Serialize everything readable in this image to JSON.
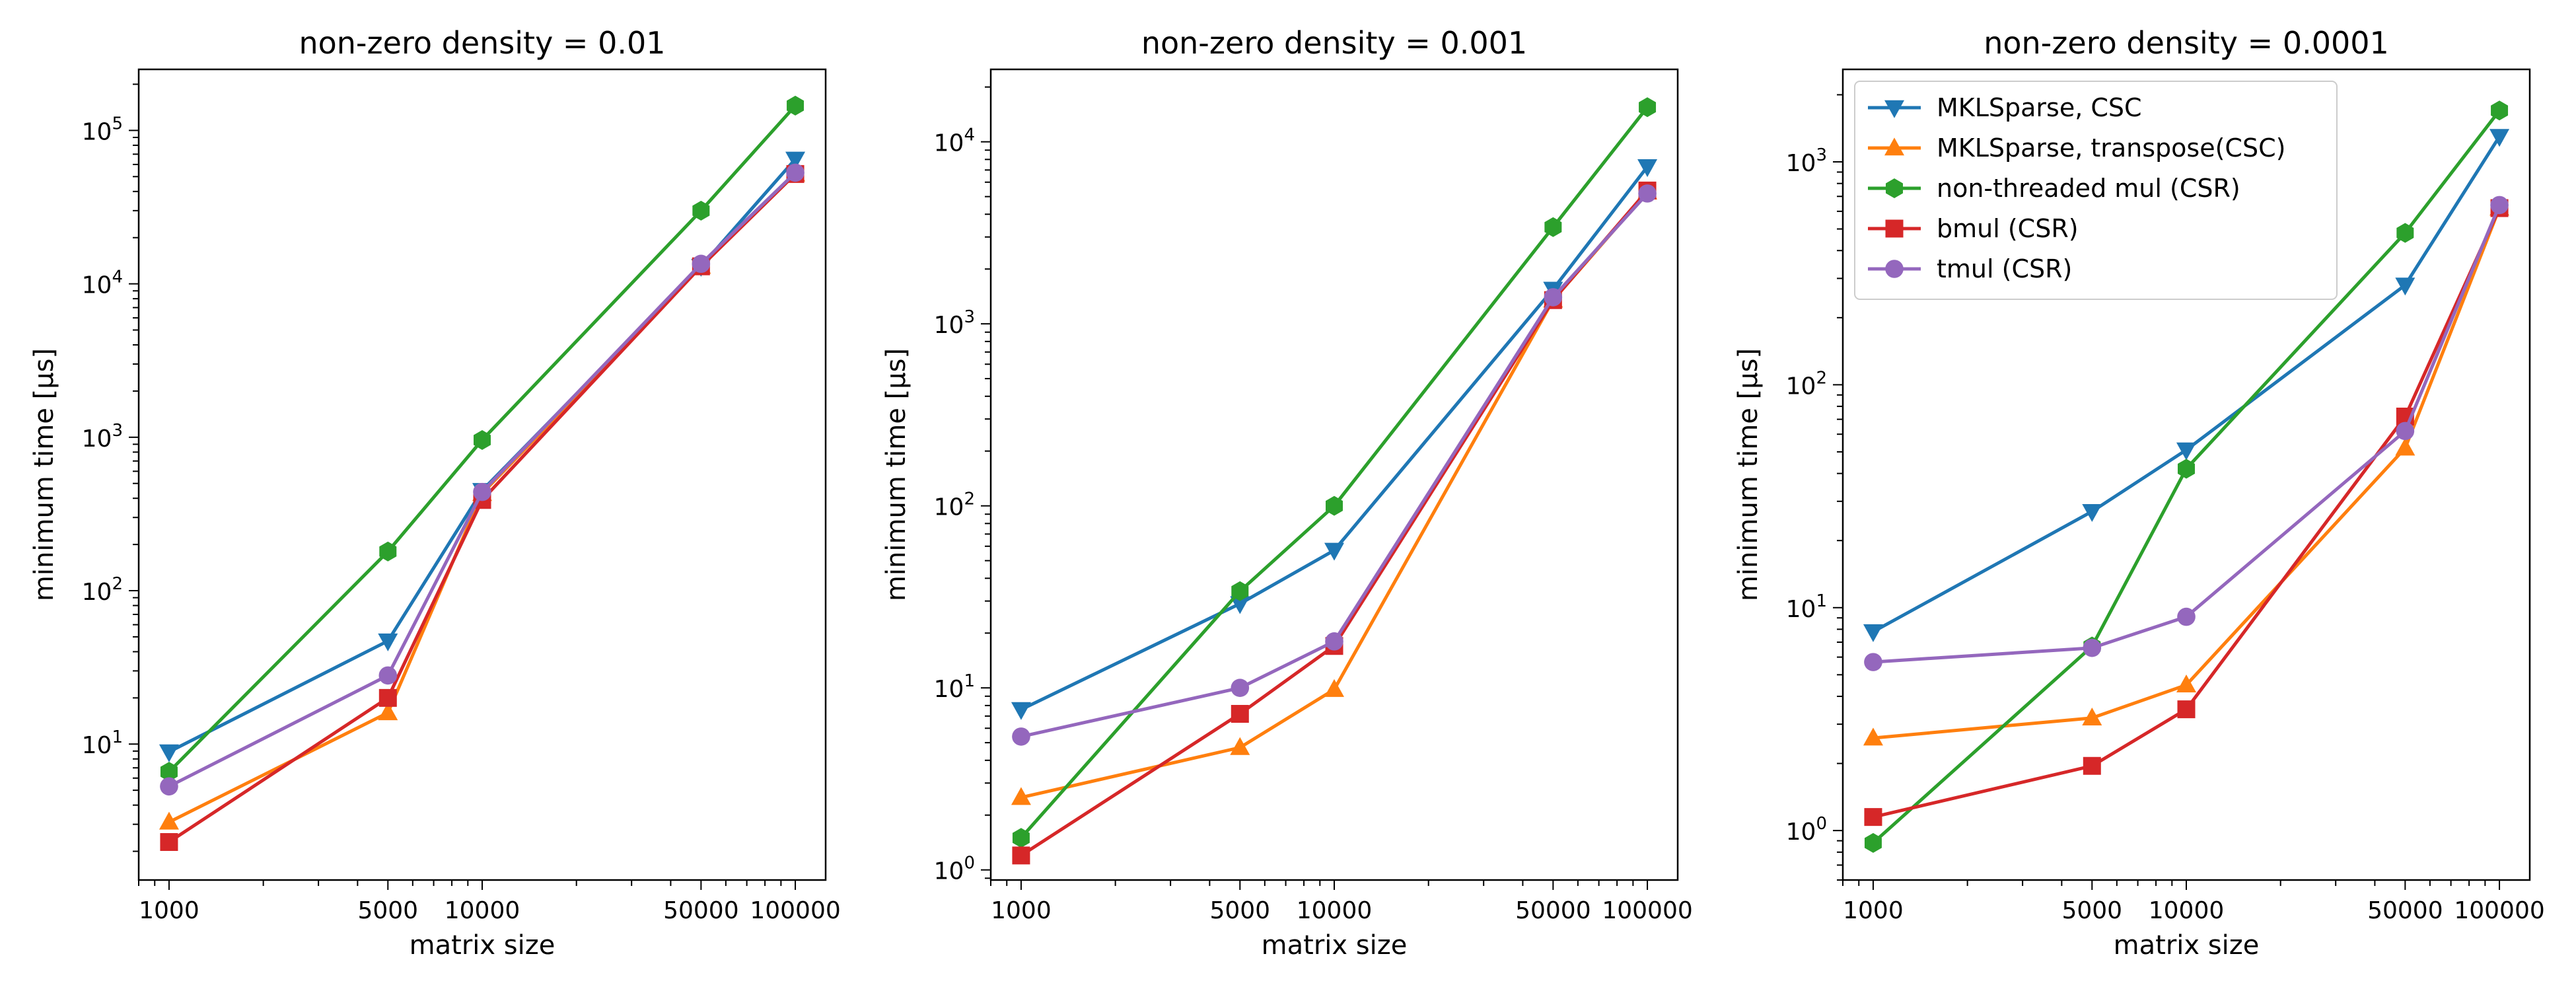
{
  "chart_data": [
    {
      "type": "line",
      "title": "non-zero density = 0.01",
      "xlabel": "matrix size",
      "ylabel": "minimum time [µs]",
      "xscale": "log",
      "yscale": "log",
      "xlim": [
        800,
        125000
      ],
      "ylim": [
        1.3,
        250000
      ],
      "x_ticks": [
        1000,
        5000,
        10000,
        50000,
        100000
      ],
      "x_tick_labels": [
        "1000",
        "5000",
        "10000",
        "50000",
        "100000"
      ],
      "y_ticks": [
        10,
        100,
        1000,
        10000,
        100000
      ],
      "y_tick_labels": [
        {
          "base": "10",
          "exp": "1"
        },
        {
          "base": "10",
          "exp": "2"
        },
        {
          "base": "10",
          "exp": "3"
        },
        {
          "base": "10",
          "exp": "4"
        },
        {
          "base": "10",
          "exp": "5"
        }
      ],
      "grid": false,
      "legend": null,
      "x": [
        1000,
        5000,
        10000,
        50000,
        100000
      ],
      "series": [
        {
          "name": "MKLSparse, CSC",
          "values": [
            8.9,
            47,
            450,
            13000,
            65000
          ]
        },
        {
          "name": "MKLSparse, transpose(CSC)",
          "values": [
            3.1,
            16,
            430,
            13000,
            52000
          ]
        },
        {
          "name": "non-threaded mul (CSR)",
          "values": [
            6.6,
            180,
            960,
            30000,
            145000
          ]
        },
        {
          "name": "bmul (CSR)",
          "values": [
            2.3,
            20,
            390,
            13000,
            52000
          ]
        },
        {
          "name": "tmul (CSR)",
          "values": [
            5.3,
            28,
            440,
            13500,
            53000
          ]
        }
      ]
    },
    {
      "type": "line",
      "title": "non-zero density = 0.001",
      "xlabel": "matrix size",
      "ylabel": "minimum time [µs]",
      "xscale": "log",
      "yscale": "log",
      "xlim": [
        800,
        125000
      ],
      "ylim": [
        0.88,
        25000
      ],
      "x_ticks": [
        1000,
        5000,
        10000,
        50000,
        100000
      ],
      "x_tick_labels": [
        "1000",
        "5000",
        "10000",
        "50000",
        "100000"
      ],
      "y_ticks": [
        1,
        10,
        100,
        1000,
        10000
      ],
      "y_tick_labels": [
        {
          "base": "10",
          "exp": "0"
        },
        {
          "base": "10",
          "exp": "1"
        },
        {
          "base": "10",
          "exp": "2"
        },
        {
          "base": "10",
          "exp": "3"
        },
        {
          "base": "10",
          "exp": "4"
        }
      ],
      "grid": false,
      "legend": null,
      "x": [
        1000,
        5000,
        10000,
        50000,
        100000
      ],
      "series": [
        {
          "name": "MKLSparse, CSC",
          "values": [
            7.6,
            29,
            57,
            1550,
            7300
          ]
        },
        {
          "name": "MKLSparse, transpose(CSC)",
          "values": [
            2.5,
            4.7,
            9.8,
            1350,
            5300
          ]
        },
        {
          "name": "non-threaded mul (CSR)",
          "values": [
            1.5,
            34,
            100,
            3400,
            15500
          ]
        },
        {
          "name": "bmul (CSR)",
          "values": [
            1.2,
            7.2,
            17,
            1350,
            5400
          ]
        },
        {
          "name": "tmul (CSR)",
          "values": [
            5.4,
            10,
            18,
            1400,
            5200
          ]
        }
      ]
    },
    {
      "type": "line",
      "title": "non-zero density = 0.0001",
      "xlabel": "matrix size",
      "ylabel": "minimum time [µs]",
      "xscale": "log",
      "yscale": "log",
      "xlim": [
        800,
        125000
      ],
      "ylim": [
        0.6,
        2600
      ],
      "x_ticks": [
        1000,
        5000,
        10000,
        50000,
        100000
      ],
      "x_tick_labels": [
        "1000",
        "5000",
        "10000",
        "50000",
        "100000"
      ],
      "y_ticks": [
        1,
        10,
        100,
        1000
      ],
      "y_tick_labels": [
        {
          "base": "10",
          "exp": "0"
        },
        {
          "base": "10",
          "exp": "1"
        },
        {
          "base": "10",
          "exp": "2"
        },
        {
          "base": "10",
          "exp": "3"
        }
      ],
      "grid": false,
      "legend": "upper-left",
      "x": [
        1000,
        5000,
        10000,
        50000,
        100000
      ],
      "series": [
        {
          "name": "MKLSparse, CSC",
          "values": [
            7.8,
            27,
            51,
            280,
            1300
          ]
        },
        {
          "name": "MKLSparse, transpose(CSC)",
          "values": [
            2.6,
            3.2,
            4.5,
            52,
            620
          ]
        },
        {
          "name": "non-threaded mul (CSR)",
          "values": [
            0.88,
            6.7,
            42,
            480,
            1700
          ]
        },
        {
          "name": "bmul (CSR)",
          "values": [
            1.15,
            1.95,
            3.5,
            72,
            620
          ]
        },
        {
          "name": "tmul (CSR)",
          "values": [
            5.7,
            6.6,
            9.1,
            62,
            640
          ]
        }
      ]
    }
  ],
  "styles": {
    "series_colors": [
      "#1f77b4",
      "#ff7f0e",
      "#2ca02c",
      "#d62728",
      "#9467bd"
    ],
    "series_markers": [
      "triangle-down",
      "triangle-up",
      "hexagon",
      "square",
      "circle"
    ]
  }
}
